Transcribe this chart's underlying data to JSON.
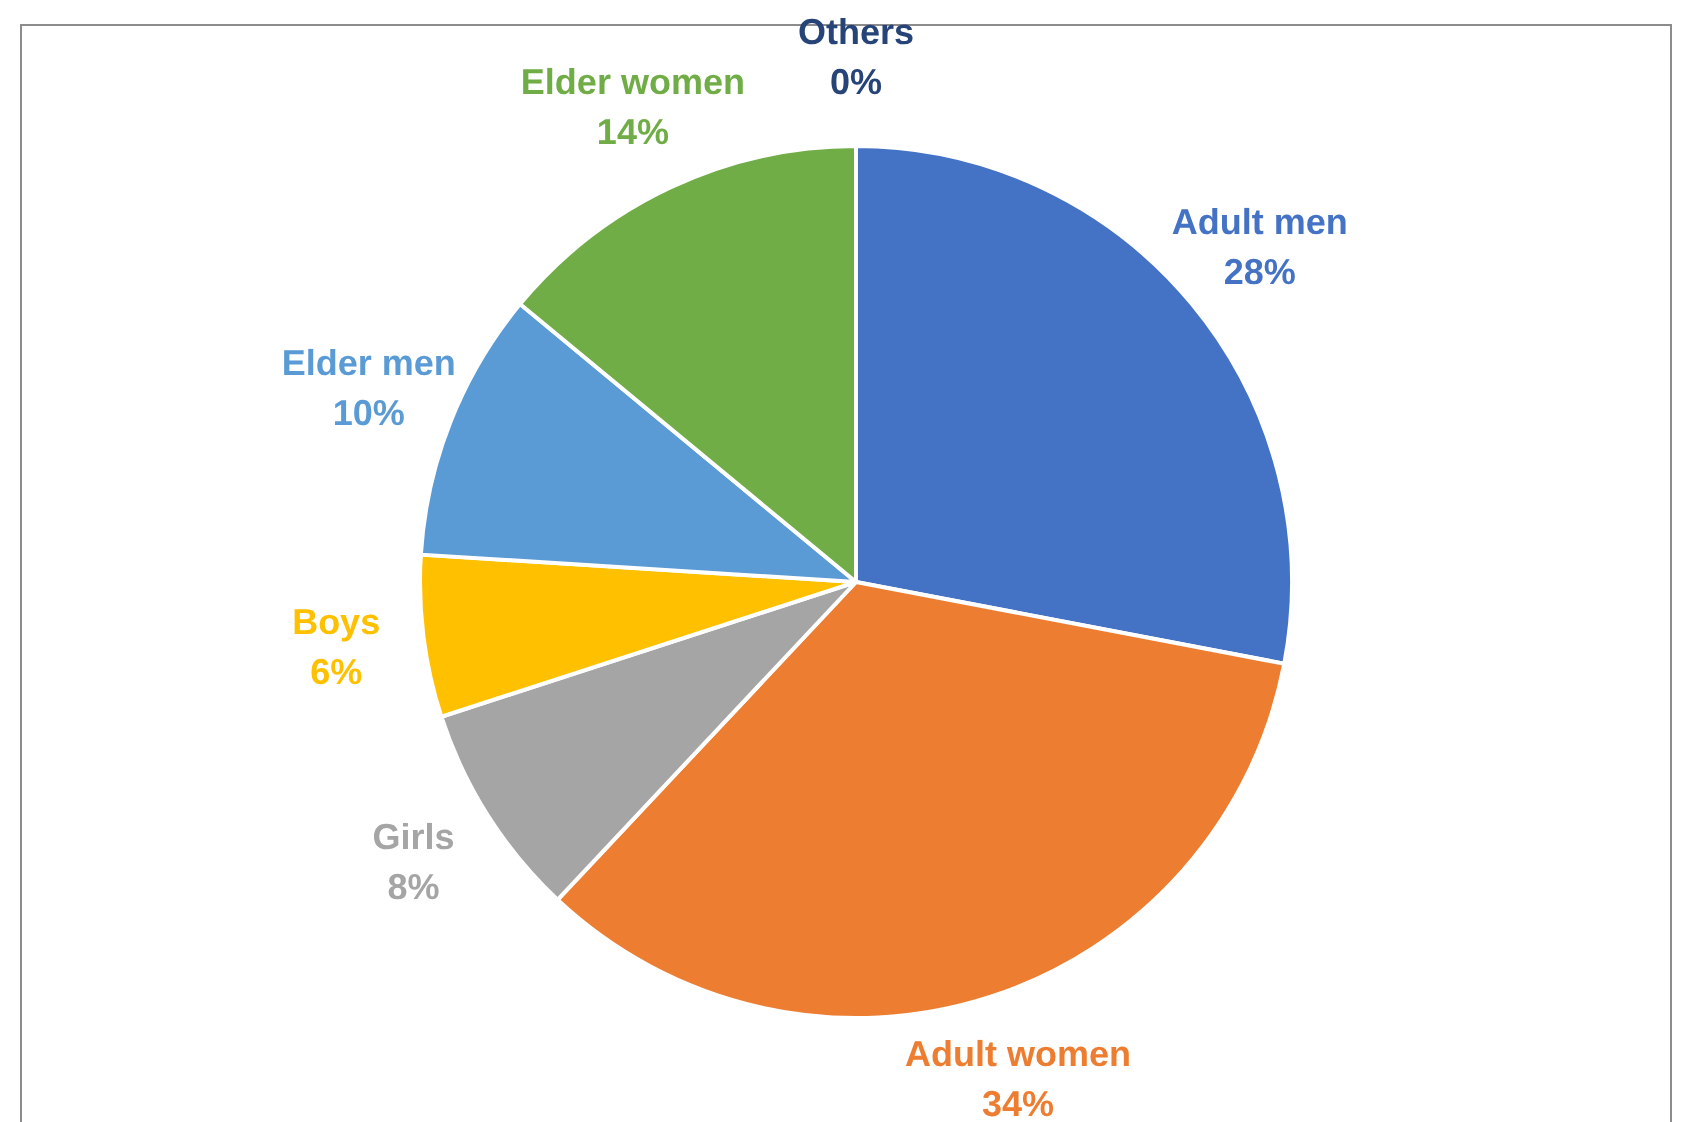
{
  "chart_data": {
    "type": "pie",
    "categories": [
      "Adult men",
      "Adult women",
      "Girls",
      "Boys",
      "Elder men",
      "Elder women",
      "Others"
    ],
    "values": [
      28,
      34,
      8,
      6,
      10,
      14,
      0
    ],
    "value_labels": [
      "28%",
      "34%",
      "8%",
      "6%",
      "10%",
      "14%",
      "0%"
    ],
    "colors": [
      "#4472c4",
      "#ed7d31",
      "#a5a5a5",
      "#ffc000",
      "#5b9bd5",
      "#70ad47",
      "#264478"
    ],
    "legend": false
  }
}
